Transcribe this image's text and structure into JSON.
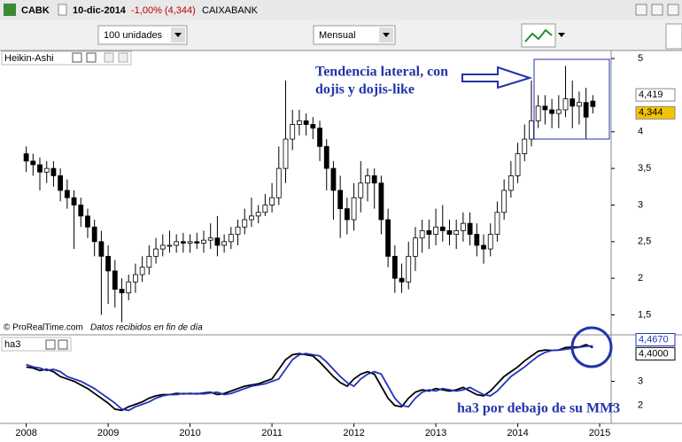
{
  "header": {
    "symbol": "CABK",
    "date": "10-dic-2014",
    "change": "-1,00% (4,344)",
    "name": "CAIXABANK"
  },
  "toolbar": {
    "units": "100 unidades",
    "period": "Mensual"
  },
  "source": {
    "site": "© ProRealTime.com",
    "note": "Datos recibidos en fin de día"
  },
  "chart_data": [
    {
      "type": "candlestick",
      "title": "Heikin-Ashi",
      "up_color": "#ffffff",
      "down_color": "#000000",
      "open": [
        3.7,
        3.6,
        3.55,
        3.45,
        3.5,
        3.4,
        3.2,
        3.1,
        3.0,
        2.85,
        2.7,
        2.5,
        2.3,
        2.1,
        1.85,
        1.8,
        1.95,
        2.05,
        2.15,
        2.3,
        2.4,
        2.45,
        2.45,
        2.5,
        2.48,
        2.5,
        2.48,
        2.52,
        2.55,
        2.45,
        2.5,
        2.6,
        2.7,
        2.8,
        2.85,
        2.9,
        3.0,
        3.1,
        3.5,
        3.9,
        4.1,
        4.15,
        4.1,
        4.05,
        3.8,
        3.5,
        3.2,
        2.95,
        2.8,
        3.1,
        3.3,
        3.4,
        3.3,
        2.8,
        2.3,
        2.0,
        1.95,
        2.3,
        2.55,
        2.65,
        2.6,
        2.7,
        2.65,
        2.6,
        2.65,
        2.75,
        2.6,
        2.45,
        2.4,
        2.6,
        2.9,
        3.2,
        3.4,
        3.7,
        3.9,
        4.15,
        4.35,
        4.3,
        4.25,
        4.3,
        4.45,
        4.35,
        4.4,
        4.419
      ],
      "high": [
        3.8,
        3.7,
        3.65,
        3.6,
        3.6,
        3.5,
        3.35,
        3.2,
        3.1,
        2.95,
        2.8,
        2.65,
        2.45,
        2.25,
        2.0,
        2.05,
        2.2,
        2.3,
        2.45,
        2.55,
        2.6,
        2.65,
        2.6,
        2.62,
        2.6,
        2.62,
        2.65,
        2.75,
        2.85,
        2.6,
        2.7,
        2.8,
        2.95,
        3.1,
        3.0,
        3.15,
        3.3,
        3.8,
        4.7,
        4.3,
        4.3,
        4.25,
        4.2,
        4.15,
        3.9,
        3.6,
        3.4,
        3.1,
        3.3,
        3.6,
        3.5,
        3.5,
        3.4,
        2.95,
        2.45,
        2.2,
        2.5,
        2.7,
        2.8,
        2.8,
        2.95,
        3.0,
        2.8,
        2.8,
        2.9,
        2.9,
        2.75,
        2.6,
        2.75,
        3.05,
        3.35,
        3.6,
        3.85,
        4.1,
        4.7,
        4.5,
        4.5,
        4.45,
        4.5,
        4.9,
        4.7,
        4.55,
        4.6,
        4.5
      ],
      "low": [
        3.45,
        3.4,
        3.2,
        3.3,
        3.25,
        3.05,
        2.95,
        2.4,
        2.7,
        2.55,
        2.3,
        1.5,
        1.65,
        1.6,
        1.4,
        1.7,
        1.8,
        1.95,
        2.05,
        2.2,
        2.3,
        2.35,
        2.35,
        2.35,
        2.35,
        2.4,
        2.35,
        2.4,
        2.3,
        2.35,
        2.4,
        2.45,
        2.6,
        2.7,
        2.75,
        2.85,
        2.9,
        3.0,
        3.3,
        3.75,
        3.95,
        3.95,
        3.9,
        3.6,
        3.2,
        2.8,
        2.55,
        2.6,
        2.65,
        2.9,
        3.05,
        2.95,
        2.6,
        2.15,
        1.8,
        1.8,
        1.85,
        2.1,
        2.35,
        2.4,
        2.45,
        2.5,
        2.45,
        2.4,
        2.5,
        2.45,
        2.3,
        2.2,
        2.3,
        2.5,
        2.8,
        3.1,
        3.3,
        3.6,
        3.8,
        4.05,
        4.1,
        4.05,
        4.05,
        4.2,
        4.05,
        4.1,
        3.9,
        4.25
      ],
      "close": [
        3.6,
        3.55,
        3.45,
        3.5,
        3.4,
        3.2,
        3.1,
        3.0,
        2.85,
        2.7,
        2.5,
        2.3,
        2.1,
        1.85,
        1.8,
        1.95,
        2.05,
        2.15,
        2.3,
        2.4,
        2.45,
        2.45,
        2.5,
        2.48,
        2.5,
        2.48,
        2.52,
        2.55,
        2.45,
        2.5,
        2.6,
        2.7,
        2.8,
        2.85,
        2.9,
        3.0,
        3.1,
        3.5,
        3.9,
        4.1,
        4.15,
        4.1,
        4.05,
        3.8,
        3.5,
        3.2,
        2.95,
        2.8,
        3.1,
        3.3,
        3.4,
        3.3,
        2.8,
        2.3,
        2.0,
        1.95,
        2.3,
        2.55,
        2.65,
        2.6,
        2.7,
        2.65,
        2.6,
        2.65,
        2.75,
        2.6,
        2.45,
        2.4,
        2.6,
        2.9,
        3.2,
        3.4,
        3.7,
        3.9,
        4.15,
        4.35,
        4.3,
        4.25,
        4.3,
        4.45,
        4.35,
        4.4,
        4.2,
        4.344
      ],
      "ylim": [
        1.24,
        5.11
      ],
      "yticks": [
        {
          "value": 1.5,
          "label": "1,5"
        },
        2,
        {
          "value": 2.5,
          "label": "2,5"
        },
        3,
        {
          "value": 3.5,
          "label": "3,5"
        },
        4,
        5
      ],
      "value_tags": [
        {
          "value": 4.419,
          "label": "4,419",
          "color": "#ffffff"
        },
        {
          "value": 4.344,
          "label": "4,344",
          "color": "#f5c400"
        }
      ],
      "annotation": [
        "Tendencia lateral, con",
        "dojis y dojis-like"
      ]
    },
    {
      "type": "line",
      "title": "ha3",
      "series": [
        {
          "color": "#000000",
          "values": [
            3.6,
            3.55,
            3.45,
            3.5,
            3.4,
            3.2,
            3.1,
            3.0,
            2.85,
            2.7,
            2.5,
            2.3,
            2.1,
            1.85,
            1.8,
            1.95,
            2.05,
            2.15,
            2.3,
            2.4,
            2.45,
            2.45,
            2.5,
            2.48,
            2.5,
            2.48,
            2.52,
            2.55,
            2.45,
            2.5,
            2.6,
            2.7,
            2.8,
            2.85,
            2.9,
            3.0,
            3.1,
            3.5,
            3.9,
            4.1,
            4.15,
            4.1,
            4.05,
            3.8,
            3.5,
            3.2,
            2.95,
            2.8,
            3.1,
            3.3,
            3.4,
            3.3,
            2.8,
            2.3,
            2.0,
            1.95,
            2.3,
            2.55,
            2.65,
            2.6,
            2.7,
            2.65,
            2.6,
            2.65,
            2.75,
            2.6,
            2.45,
            2.4,
            2.6,
            2.9,
            3.2,
            3.4,
            3.6,
            3.85,
            4.05,
            4.25,
            4.3,
            4.28,
            4.3,
            4.4,
            4.42,
            4.42,
            4.52,
            4.4
          ]
        },
        {
          "color": "#2233bb",
          "values": [
            3.7,
            3.6,
            3.55,
            3.45,
            3.5,
            3.4,
            3.2,
            3.1,
            3.0,
            2.85,
            2.7,
            2.5,
            2.3,
            2.1,
            1.85,
            1.8,
            1.95,
            2.05,
            2.15,
            2.3,
            2.4,
            2.45,
            2.45,
            2.5,
            2.48,
            2.5,
            2.48,
            2.52,
            2.55,
            2.45,
            2.5,
            2.6,
            2.7,
            2.8,
            2.85,
            2.9,
            3.0,
            3.1,
            3.5,
            3.9,
            4.1,
            4.15,
            4.1,
            4.05,
            3.8,
            3.5,
            3.2,
            2.95,
            2.8,
            3.1,
            3.3,
            3.4,
            3.3,
            2.8,
            2.3,
            2.0,
            1.95,
            2.3,
            2.55,
            2.65,
            2.6,
            2.7,
            2.65,
            2.6,
            2.65,
            2.75,
            2.6,
            2.45,
            2.4,
            2.6,
            2.9,
            3.2,
            3.4,
            3.6,
            3.83,
            4.05,
            4.2,
            4.28,
            4.29,
            4.33,
            4.37,
            4.41,
            4.45,
            4.467
          ]
        }
      ],
      "ylim": [
        1.26,
        4.89
      ],
      "yticks": [
        2,
        3
      ],
      "value_tags": [
        {
          "value": 4.467,
          "label": "4,4670",
          "color": "#2233bb"
        },
        {
          "value": 4.4,
          "label": "4,4000",
          "color": "#000000"
        }
      ],
      "xlim": [
        2007.68,
        2015.14
      ],
      "xticks": [
        2008,
        2009,
        2010,
        2011,
        2012,
        2013,
        2014,
        2015
      ],
      "annotation": "ha3 por debajo de su MM3"
    }
  ]
}
